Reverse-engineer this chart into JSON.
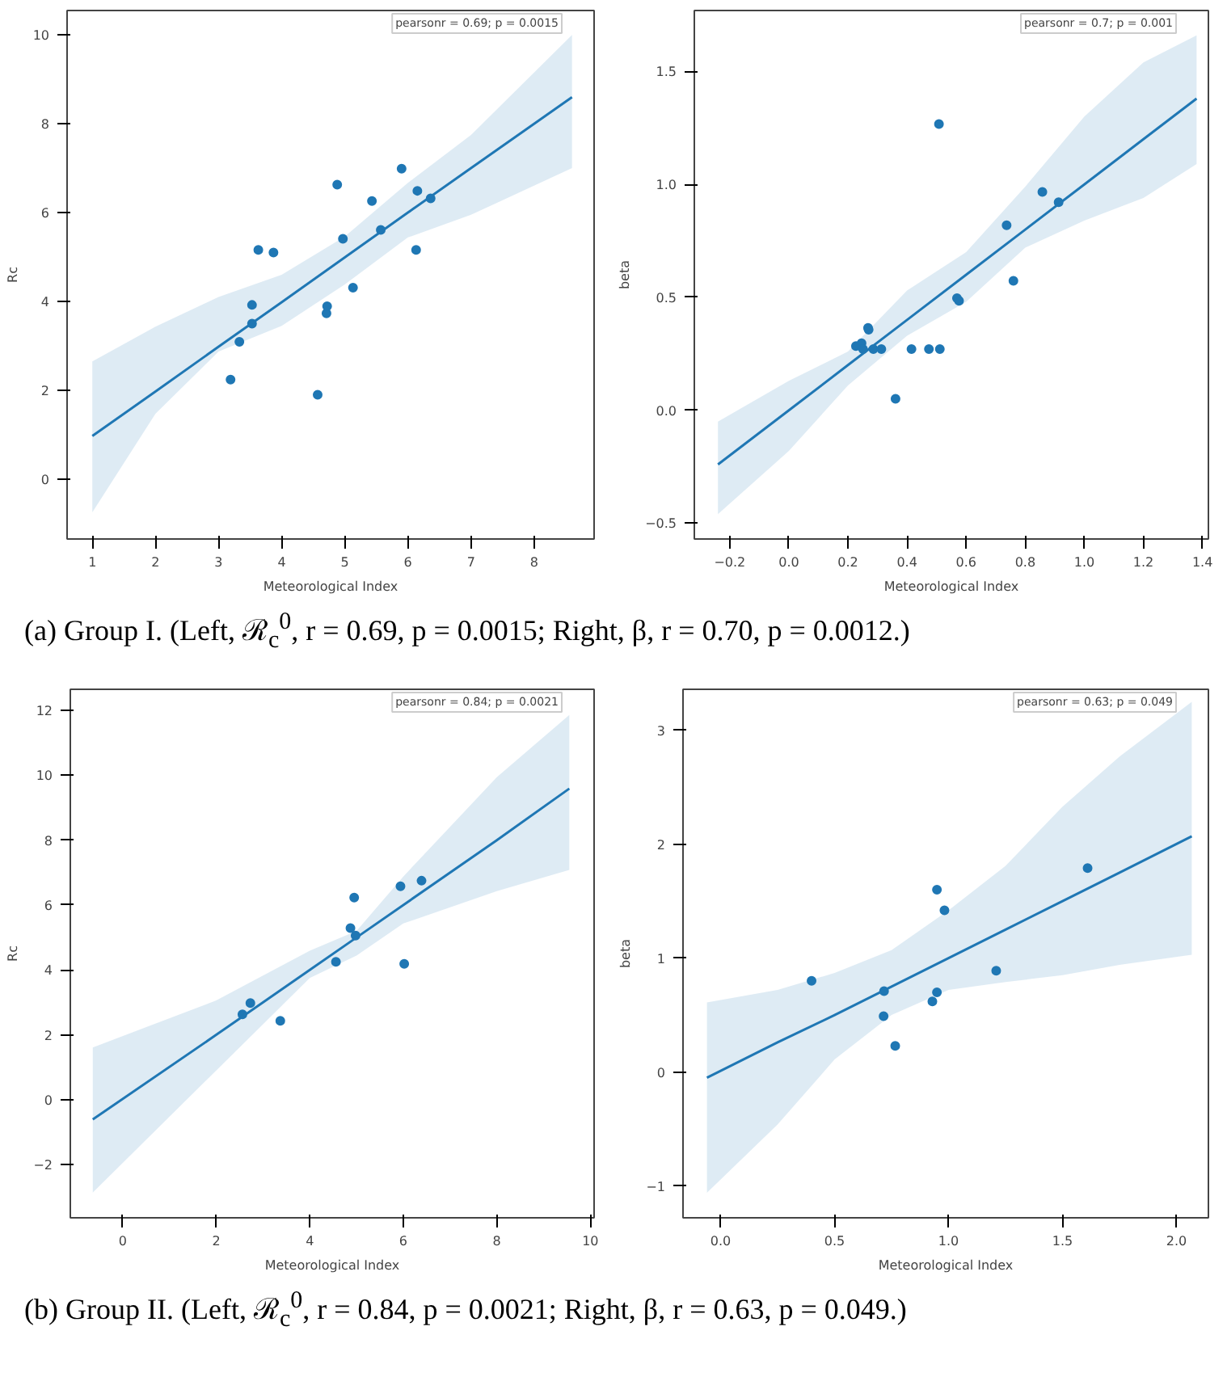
{
  "chart_data": [
    {
      "type": "scatter",
      "title": "(a) Group I. (Left, ℛ$_{c}$$^{0}$, r = 0.69, p = 0.0015; Right, β, r = 0.70, p = 0.0012.)",
      "xlabel": "Meteorological Index",
      "ylabel": "Rc",
      "annotations": [
        "pearsonr = 0.69; p = 0.0015"
      ],
      "grid": false,
      "xlim": [
        0.6,
        8.95
      ],
      "ylim": [
        -1.35,
        10.55
      ],
      "xticks": [
        1,
        2,
        3,
        4,
        5,
        6,
        7,
        8
      ],
      "yticks": [
        0,
        2,
        4,
        6,
        8,
        10
      ],
      "x": [
        3.19,
        3.33,
        3.53,
        3.53,
        3.63,
        3.87,
        4.57,
        4.71,
        4.72,
        4.88,
        4.97,
        5.13,
        5.43,
        5.57,
        5.9,
        6.13,
        6.15,
        6.36
      ],
      "series": [
        {
          "color": "#1f77b4",
          "marker": "circle",
          "values": [
            2.24,
            3.09,
            3.92,
            3.5,
            5.16,
            5.1,
            1.9,
            3.73,
            3.89,
            6.63,
            5.41,
            4.31,
            6.26,
            5.61,
            6.99,
            5.16,
            6.49,
            6.32
          ]
        },
        {
          "type": "line",
          "color": "#1f77b4",
          "x": [
            1,
            2,
            3,
            4,
            5,
            6,
            7,
            8.6
          ],
          "values": [
            0.97,
            1.97,
            2.98,
            3.98,
            4.99,
            6.0,
            7.0,
            8.6
          ],
          "lower": [
            -0.75,
            1.47,
            2.87,
            3.45,
            4.38,
            5.44,
            5.95,
            7.0
          ],
          "upper": [
            2.65,
            3.43,
            4.1,
            4.6,
            5.46,
            6.67,
            7.75,
            10.0
          ]
        }
      ]
    },
    {
      "type": "scatter",
      "xlabel": "Meteorological Index",
      "ylabel": "beta",
      "annotations": [
        "pearsonr = 0.7; p = 0.001"
      ],
      "grid": false,
      "xlim": [
        -0.32,
        1.42
      ],
      "ylim": [
        -0.57,
        1.77
      ],
      "xticks": [
        {
          "value": -0.2,
          "label": "−0.2"
        },
        {
          "value": 0,
          "label": "0.0"
        },
        {
          "value": 0.2,
          "label": "0.2"
        },
        {
          "value": 0.4,
          "label": "0.4"
        },
        {
          "value": 0.6,
          "label": "0.6"
        },
        {
          "value": 0.8,
          "label": "0.8"
        },
        {
          "value": 1.0,
          "label": "1.0"
        },
        {
          "value": 1.2,
          "label": "1.2"
        },
        {
          "value": 1.4,
          "label": "1.4"
        }
      ],
      "yticks": [
        {
          "value": -0.5,
          "label": "−0.5"
        },
        {
          "value": 0,
          "label": "0.0"
        },
        {
          "value": 0.5,
          "label": "0.5"
        },
        {
          "value": 1.0,
          "label": "1.0"
        },
        {
          "value": 1.5,
          "label": "1.5"
        }
      ],
      "x": [
        0.508,
        0.227,
        0.246,
        0.251,
        0.268,
        0.27,
        0.286,
        0.313,
        0.361,
        0.415,
        0.474,
        0.511,
        0.569,
        0.576,
        0.737,
        0.76,
        0.858,
        0.913
      ],
      "series": [
        {
          "color": "#1f77b4",
          "marker": "circle",
          "values": [
            1.267,
            0.284,
            0.297,
            0.271,
            0.365,
            0.357,
            0.271,
            0.271,
            0.051,
            0.271,
            0.271,
            0.271,
            0.496,
            0.485,
            0.819,
            0.573,
            0.967,
            0.921
          ]
        },
        {
          "type": "line",
          "color": "#1f77b4",
          "x": [
            -0.24,
            0,
            0.2,
            0.4,
            0.6,
            0.8,
            1.0,
            1.2,
            1.38
          ],
          "values": [
            -0.24,
            0.0,
            0.2,
            0.4,
            0.6,
            0.8,
            1.0,
            1.2,
            1.38
          ],
          "lower": [
            -0.46,
            -0.18,
            0.11,
            0.33,
            0.48,
            0.72,
            0.84,
            0.94,
            1.09
          ],
          "upper": [
            -0.05,
            0.13,
            0.26,
            0.53,
            0.7,
            0.99,
            1.3,
            1.54,
            1.66
          ]
        }
      ]
    },
    {
      "type": "scatter",
      "title": "(b) Group II. (Left, ℛ$_{c}$$^{0}$, r = 0.84, p = 0.0021; Right, β, r = 0.63, p = 0.049.)",
      "xlabel": "Meteorological Index",
      "ylabel": "Rc",
      "annotations": [
        "pearsonr = 0.84; p = 0.0021"
      ],
      "grid": false,
      "xlim": [
        -1.12,
        10.08
      ],
      "ylim": [
        -3.64,
        12.65
      ],
      "xticks": [
        0,
        2,
        4,
        6,
        8,
        10
      ],
      "yticks": [
        {
          "value": -2,
          "label": "−2"
        },
        0,
        2,
        4,
        6,
        8,
        10,
        12
      ],
      "x": [
        2.56,
        2.73,
        3.37,
        4.56,
        4.87,
        4.95,
        4.98,
        5.94,
        6.02,
        6.39
      ],
      "series": [
        {
          "color": "#1f77b4",
          "marker": "circle",
          "values": [
            2.63,
            2.98,
            2.43,
            4.25,
            5.29,
            6.23,
            5.06,
            6.58,
            4.19,
            6.75
          ]
        },
        {
          "type": "line",
          "color": "#1f77b4",
          "x": [
            -0.64,
            2,
            4,
            5,
            6,
            8,
            9.55
          ],
          "values": [
            -0.61,
            2.0,
            4.0,
            5.0,
            6.0,
            8.0,
            9.59
          ],
          "lower": [
            -2.86,
            0.9,
            3.75,
            4.44,
            5.43,
            6.43,
            7.08
          ],
          "upper": [
            1.61,
            3.06,
            4.59,
            5.2,
            6.88,
            9.94,
            11.86
          ]
        }
      ]
    },
    {
      "type": "scatter",
      "xlabel": "Meteorological Index",
      "ylabel": "beta",
      "annotations": [
        "pearsonr = 0.63; p = 0.049"
      ],
      "grid": false,
      "xlim": [
        -0.165,
        2.14
      ],
      "ylim": [
        -1.28,
        3.36
      ],
      "xticks": [
        {
          "value": 0,
          "label": "0.0"
        },
        {
          "value": 0.5,
          "label": "0.5"
        },
        {
          "value": 1.0,
          "label": "1.0"
        },
        {
          "value": 1.5,
          "label": "1.5"
        },
        {
          "value": 2.0,
          "label": "2.0"
        }
      ],
      "yticks": [
        {
          "value": -1,
          "label": "−1"
        },
        0,
        1,
        2,
        3
      ],
      "x": [
        0.399,
        0.717,
        0.715,
        0.766,
        0.929,
        0.949,
        0.949,
        0.982,
        1.209,
        1.61
      ],
      "series": [
        {
          "color": "#1f77b4",
          "marker": "circle",
          "values": [
            0.8,
            0.71,
            0.49,
            0.23,
            0.62,
            1.6,
            0.7,
            1.42,
            0.89,
            1.79
          ]
        },
        {
          "type": "line",
          "color": "#1f77b4",
          "x": [
            -0.06,
            0.25,
            0.5,
            0.75,
            1.0,
            1.25,
            1.5,
            1.75,
            2.067
          ],
          "values": [
            -0.05,
            0.26,
            0.5,
            0.75,
            1.0,
            1.25,
            1.5,
            1.75,
            2.07
          ],
          "lower": [
            -1.06,
            -0.46,
            0.11,
            0.5,
            0.72,
            0.79,
            0.85,
            0.94,
            1.03
          ],
          "upper": [
            0.61,
            0.72,
            0.87,
            1.07,
            1.42,
            1.81,
            2.33,
            2.77,
            3.25
          ]
        }
      ]
    }
  ]
}
